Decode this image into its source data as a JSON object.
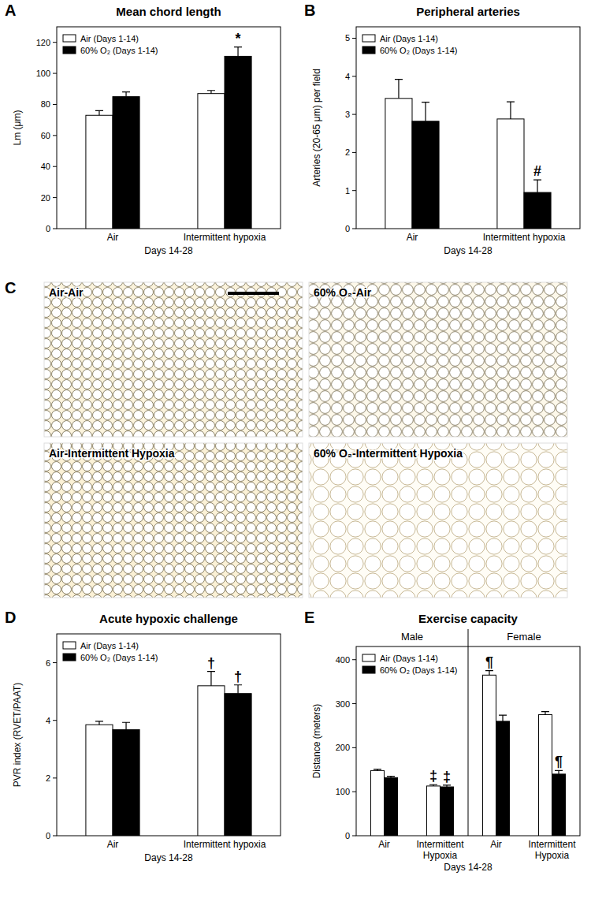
{
  "chart_data": [
    {
      "label": "A",
      "type": "bar",
      "title": "Mean chord length",
      "y_label": "Lm (μm)",
      "x_label": "Days 14-28",
      "categories": [
        "Air",
        "Intermittent hypoxia"
      ],
      "series": [
        {
          "name": "Air (Days 1-14)",
          "color": "#ffffff",
          "values": [
            73,
            87
          ],
          "errors": [
            3,
            2
          ]
        },
        {
          "name": "60% O₂ (Days 1-14)",
          "color": "#000000",
          "values": [
            85,
            111
          ],
          "errors": [
            3,
            6
          ]
        }
      ],
      "ylim": [
        0,
        130
      ],
      "yticks": [
        0,
        20,
        40,
        60,
        80,
        100,
        120
      ],
      "legend": "upper left",
      "annotations": [
        {
          "text": "*",
          "series": 1,
          "category": 1
        }
      ]
    },
    {
      "label": "B",
      "type": "bar",
      "title": "Peripheral arteries",
      "y_label": "Arteries (20-65 μm) per field",
      "x_label": "Days 14-28",
      "categories": [
        "Air",
        "Intermittent hypoxia"
      ],
      "series": [
        {
          "name": "Air (Days 1-14)",
          "color": "#ffffff",
          "values": [
            3.42,
            2.88
          ],
          "errors": [
            0.5,
            0.45
          ]
        },
        {
          "name": "60% O₂ (Days 1-14)",
          "color": "#000000",
          "values": [
            2.82,
            0.95
          ],
          "errors": [
            0.5,
            0.33
          ]
        }
      ],
      "ylim": [
        0,
        5.3
      ],
      "yticks": [
        0,
        1,
        2,
        3,
        4,
        5
      ],
      "legend": "upper left",
      "annotations": [
        {
          "text": "#",
          "series": 1,
          "category": 1
        }
      ]
    },
    {
      "label": "D",
      "type": "bar",
      "title": "Acute hypoxic challenge",
      "y_label": "PVR index (RVET/PAAT)",
      "x_label": "Days 14-28",
      "categories": [
        "Air",
        "Intermittent hypoxia"
      ],
      "series": [
        {
          "name": "Air (Days 1-14)",
          "color": "#ffffff",
          "values": [
            3.85,
            5.2
          ],
          "errors": [
            0.12,
            0.5
          ]
        },
        {
          "name": "60% O₂ (Days 1-14)",
          "color": "#000000",
          "values": [
            3.68,
            4.93
          ],
          "errors": [
            0.25,
            0.3
          ]
        }
      ],
      "ylim": [
        0,
        7
      ],
      "yticks": [
        0,
        2,
        4,
        6
      ],
      "legend": "upper left",
      "annotations": [
        {
          "text": "†",
          "series": 0,
          "category": 1
        },
        {
          "text": "†",
          "series": 1,
          "category": 1
        }
      ]
    },
    {
      "label": "E",
      "type": "bar",
      "title": "Exercise capacity",
      "y_label": "Distance (meters)",
      "x_label": "Days 14-28",
      "groups": [
        "Male",
        "Female"
      ],
      "categories": [
        "Air",
        "Intermittent Hypoxia",
        "Air",
        "Intermittent Hypoxia"
      ],
      "series": [
        {
          "name": "Air (Days 1-14)",
          "color": "#ffffff",
          "values": [
            148,
            113,
            365,
            275
          ],
          "errors": [
            3,
            3,
            10,
            7
          ]
        },
        {
          "name": "60% O₂ (Days 1-14)",
          "color": "#000000",
          "values": [
            132,
            111,
            260,
            140
          ],
          "errors": [
            3,
            4,
            14,
            8
          ]
        }
      ],
      "ylim": [
        0,
        430
      ],
      "yticks": [
        0,
        100,
        200,
        300,
        400
      ],
      "legend": "upper left",
      "annotations": [
        {
          "text": "‡",
          "series": 0,
          "category": 1
        },
        {
          "text": "‡",
          "series": 1,
          "category": 1
        },
        {
          "text": "¶",
          "series": 0,
          "category": 2
        },
        {
          "text": "¶",
          "series": 1,
          "category": 3
        }
      ]
    }
  ],
  "image_panel": {
    "label": "C",
    "captions": [
      "Air-Air",
      "60% O₂-Air",
      "Air-Intermittent Hypoxia",
      "60% O₂-Intermittent Hypoxia"
    ]
  }
}
